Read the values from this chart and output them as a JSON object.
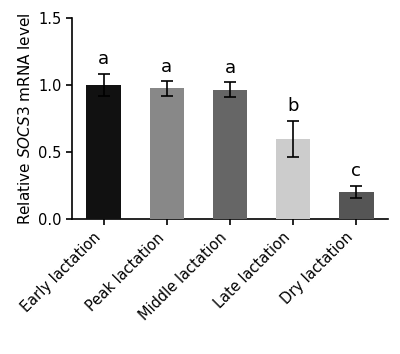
{
  "categories": [
    "Early lactation",
    "Peak lactation",
    "Middle lactation",
    "Late lactation",
    "Dry lactation"
  ],
  "values": [
    1.0,
    0.975,
    0.965,
    0.6,
    0.205
  ],
  "errors": [
    0.085,
    0.055,
    0.055,
    0.135,
    0.045
  ],
  "bar_colors": [
    "#111111",
    "#888888",
    "#666666",
    "#cccccc",
    "#555555"
  ],
  "letters": [
    "a",
    "a",
    "a",
    "b",
    "c"
  ],
  "ylim": [
    0.0,
    1.5
  ],
  "yticks": [
    0.0,
    0.5,
    1.0,
    1.5
  ],
  "bar_width": 0.55,
  "letter_fontsize": 13,
  "ylabel_fontsize": 11,
  "tick_fontsize": 10.5
}
